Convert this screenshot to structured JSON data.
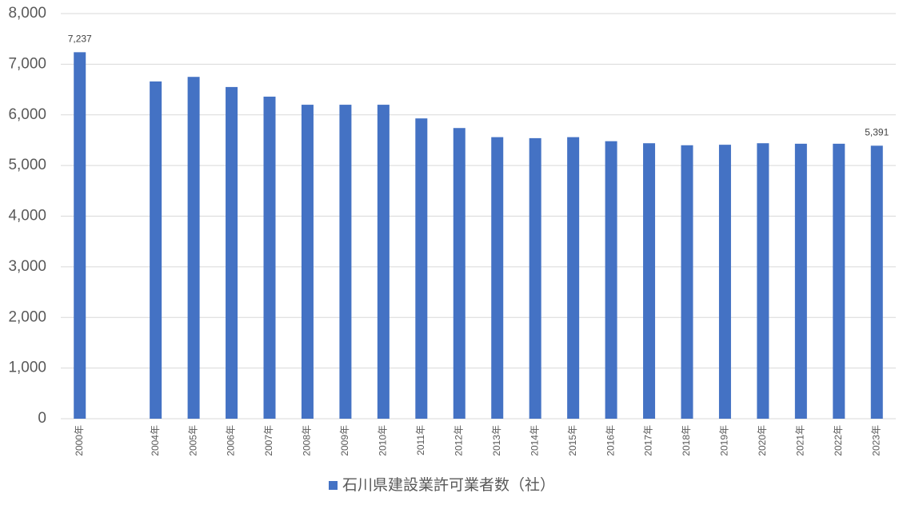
{
  "chart_data": {
    "type": "bar",
    "categories": [
      "2000年",
      null,
      "2004年",
      "2005年",
      "2006年",
      "2007年",
      "2008年",
      "2009年",
      "2010年",
      "2011年",
      "2012年",
      "2013年",
      "2014年",
      "2015年",
      "2016年",
      "2017年",
      "2018年",
      "2019年",
      "2020年",
      "2021年",
      "2022年",
      "2023年"
    ],
    "series": [
      {
        "name": "石川県建設業許可業者数（社）",
        "color": "#4472c4",
        "values": [
          7237,
          null,
          6660,
          6750,
          6550,
          6360,
          6200,
          6200,
          6200,
          5930,
          5740,
          5560,
          5540,
          5560,
          5480,
          5440,
          5400,
          5410,
          5440,
          5430,
          5430,
          5391
        ],
        "value_labels": [
          "7,237",
          null,
          null,
          null,
          null,
          null,
          null,
          null,
          null,
          null,
          null,
          null,
          null,
          null,
          null,
          null,
          null,
          null,
          null,
          null,
          null,
          "5,391"
        ]
      }
    ],
    "ylim": [
      0,
      8000
    ],
    "yticks": [
      0,
      {
        "value": 1000,
        "label": "1,000"
      },
      {
        "value": 2000,
        "label": "2,000"
      },
      {
        "value": 3000,
        "label": "3,000"
      },
      {
        "value": 4000,
        "label": "4,000"
      },
      {
        "value": 5000,
        "label": "5,000"
      },
      {
        "value": 6000,
        "label": "6,000"
      },
      {
        "value": 7000,
        "label": "7,000"
      },
      {
        "value": 8000,
        "label": "8,000"
      }
    ],
    "grid": true,
    "legend": "bottom"
  }
}
